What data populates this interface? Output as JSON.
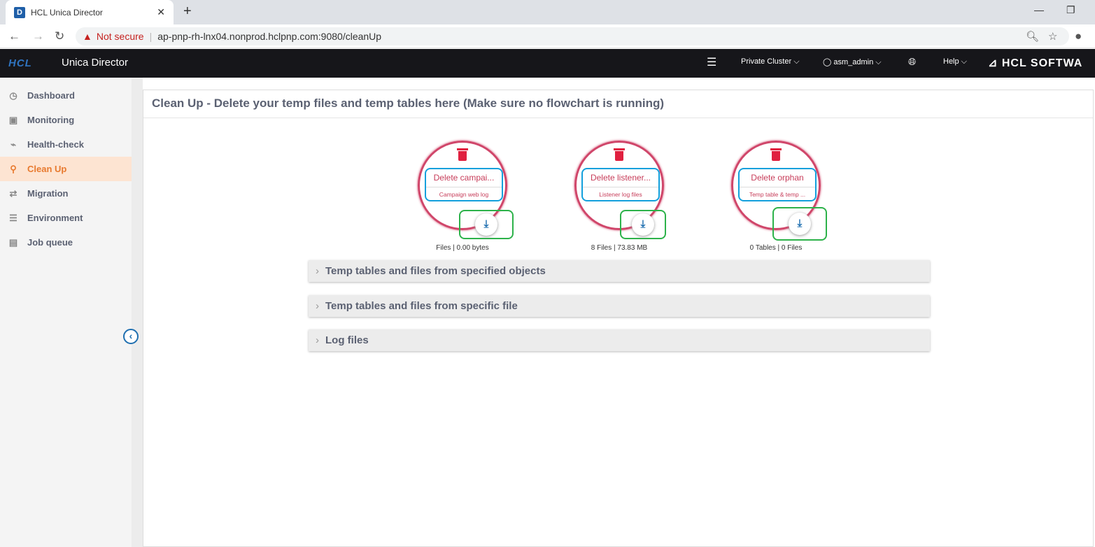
{
  "browser": {
    "tab_title": "HCL Unica Director",
    "favicon": "D",
    "not_secure": "Not secure",
    "url": "ap-pnp-rh-lnx04.nonprod.hclpnp.com:9080/cleanUp"
  },
  "header": {
    "logo": "HCL",
    "app_name": "Unica Director",
    "cluster": "Private Cluster",
    "user": "asm_admin",
    "help": "Help",
    "brand": "HCL SOFTWA"
  },
  "sidebar": {
    "items": [
      {
        "label": "Dashboard",
        "icon": "clock-icon"
      },
      {
        "label": "Monitoring",
        "icon": "monitor-icon"
      },
      {
        "label": "Health-check",
        "icon": "pulse-icon"
      },
      {
        "label": "Clean Up",
        "icon": "broom-icon",
        "active": true
      },
      {
        "label": "Migration",
        "icon": "swap-icon"
      },
      {
        "label": "Environment",
        "icon": "sliders-icon"
      },
      {
        "label": "Job queue",
        "icon": "list-icon"
      }
    ]
  },
  "main": {
    "title": "Clean Up - Delete your temp files and temp tables here (Make sure no flowchart is running)",
    "cards": [
      {
        "title": "Delete campai...",
        "subtitle": "Campaign web log",
        "stats": "Files | 0.00 bytes"
      },
      {
        "title": "Delete listener...",
        "subtitle": "Listener log files",
        "stats": "8 Files | 73.83 MB"
      },
      {
        "title": "Delete orphan",
        "subtitle": "Temp table & temp ...",
        "stats": "0 Tables | 0 Files"
      }
    ],
    "sections": [
      "Temp tables and files from specified objects",
      "Temp tables and files from specific file",
      "Log files"
    ]
  },
  "colors": {
    "accent": "#e87a2f",
    "card_border": "#d0466a",
    "header_bg": "#16161a"
  }
}
